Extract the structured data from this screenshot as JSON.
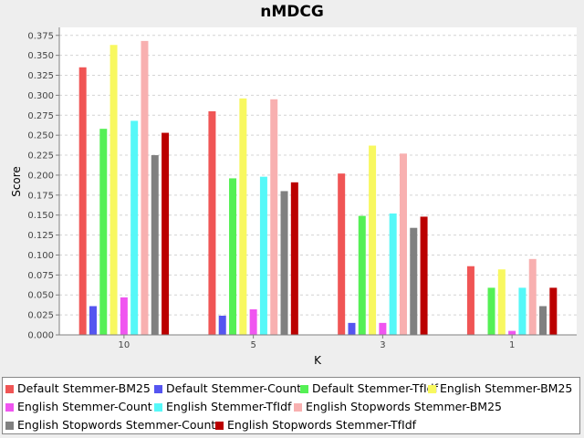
{
  "chart_data": {
    "type": "bar",
    "title": "nMDCG",
    "xlabel": "K",
    "ylabel": "Score",
    "categories": [
      "10",
      "5",
      "3",
      "1"
    ],
    "ylim": [
      0,
      0.385
    ],
    "yticks": [
      "0.000",
      "0.025",
      "0.050",
      "0.075",
      "0.100",
      "0.125",
      "0.150",
      "0.175",
      "0.200",
      "0.225",
      "0.250",
      "0.275",
      "0.300",
      "0.325",
      "0.350",
      "0.375"
    ],
    "grid": true,
    "legend": "bottom",
    "series": [
      {
        "name": "Default Stemmer-BM25",
        "color": "#f05555",
        "values": [
          0.335,
          0.28,
          0.202,
          0.086
        ]
      },
      {
        "name": "Default Stemmer-Count",
        "color": "#5555f0",
        "values": [
          0.036,
          0.024,
          0.015,
          0.0
        ]
      },
      {
        "name": "Default Stemmer-TfIdf",
        "color": "#55f055",
        "values": [
          0.258,
          0.196,
          0.149,
          0.059
        ]
      },
      {
        "name": "English Stemmer-BM25",
        "color": "#f8f860",
        "values": [
          0.363,
          0.296,
          0.237,
          0.082
        ]
      },
      {
        "name": "English Stemmer-Count",
        "color": "#f055f0",
        "values": [
          0.047,
          0.032,
          0.015,
          0.005
        ]
      },
      {
        "name": "English Stemmer-TfIdf",
        "color": "#55f8f8",
        "values": [
          0.268,
          0.198,
          0.152,
          0.059
        ]
      },
      {
        "name": "English Stopwords Stemmer-BM25",
        "color": "#f8b0b0",
        "values": [
          0.368,
          0.295,
          0.227,
          0.095
        ]
      },
      {
        "name": "English Stopwords Stemmer-Count",
        "color": "#808080",
        "values": [
          0.225,
          0.18,
          0.134,
          0.036
        ]
      },
      {
        "name": "English Stopwords Stemmer-TfIdf",
        "color": "#bb0000",
        "values": [
          0.253,
          0.191,
          0.148,
          0.059
        ]
      }
    ]
  }
}
